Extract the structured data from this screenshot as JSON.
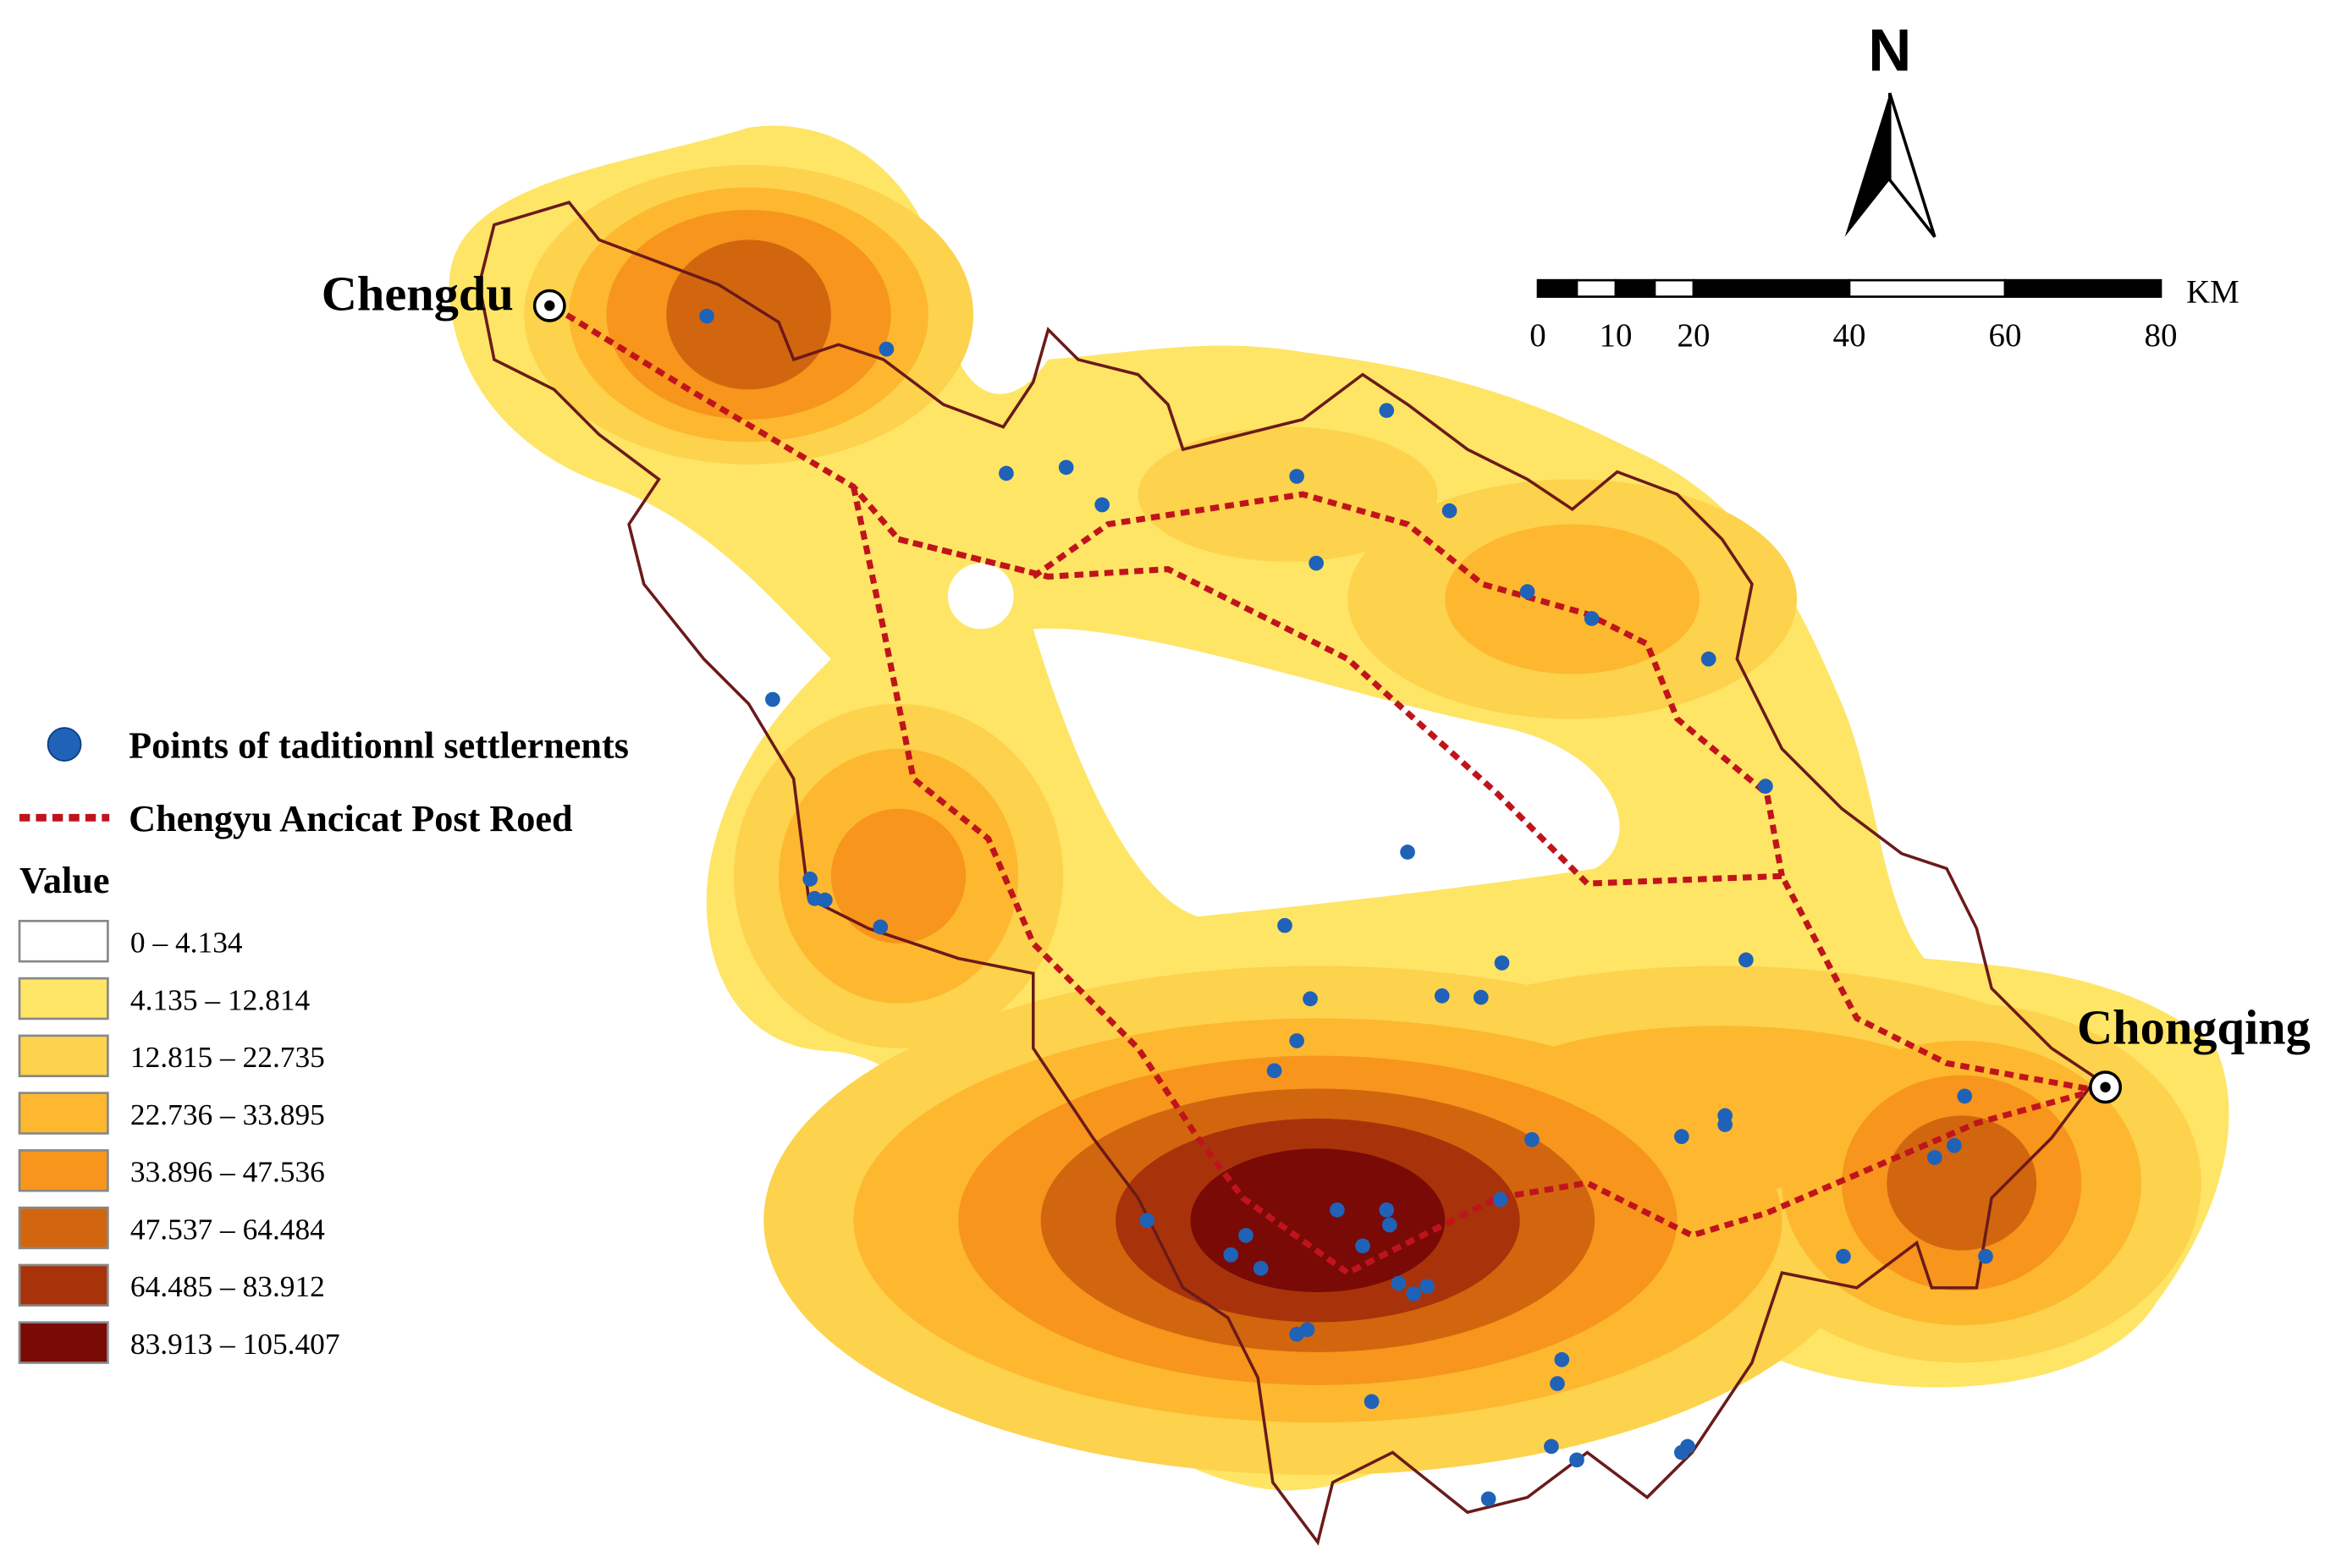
{
  "map": {
    "cities": [
      {
        "name": "Chengdu"
      },
      {
        "name": "Chongqing"
      }
    ],
    "north": "N",
    "scale_bar": {
      "ticks": [
        0,
        10,
        20,
        40,
        60,
        80
      ],
      "unit": "KM"
    },
    "legend": {
      "points": "Points of taditionnl settlernents",
      "road": "Chengyu Ancicat Post Roed",
      "title": "Value",
      "classes": [
        {
          "label": "0 – 4.134",
          "color": "#ffffff"
        },
        {
          "label": "4.135 – 12.814",
          "color": "#fee566"
        },
        {
          "label": "12.815 – 22.735",
          "color": "#fdd24c"
        },
        {
          "label": "22.736 – 33.895",
          "color": "#fdb830"
        },
        {
          "label": "33.896 – 47.536",
          "color": "#f7951c"
        },
        {
          "label": "47.537 – 64.484",
          "color": "#d2660f"
        },
        {
          "label": "64.485 – 83.912",
          "color": "#a8330a"
        },
        {
          "label": "83.913 – 105.407",
          "color": "#7a0a05"
        }
      ]
    }
  }
}
